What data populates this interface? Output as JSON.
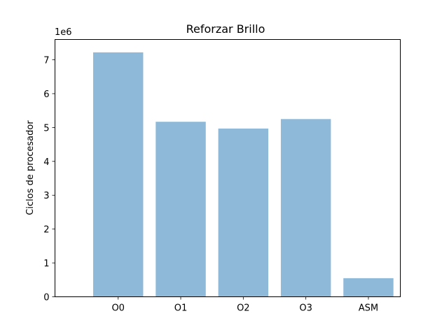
{
  "chart_data": {
    "type": "bar",
    "title": "Reforzar Brillo",
    "xlabel": "",
    "ylabel": "Ciclos de procesador",
    "offset_label": "1e6",
    "categories": [
      "O0",
      "O1",
      "O2",
      "O3",
      "ASM"
    ],
    "values": [
      7220000,
      5170000,
      4970000,
      5250000,
      550000
    ],
    "ylim": [
      0,
      7600000
    ],
    "yticks": [
      0,
      1000000,
      2000000,
      3000000,
      4000000,
      5000000,
      6000000,
      7000000
    ],
    "ytick_labels": [
      "0",
      "1",
      "2",
      "3",
      "4",
      "5",
      "6",
      "7"
    ],
    "grid": false,
    "bar_color": "#8fb9d9"
  }
}
